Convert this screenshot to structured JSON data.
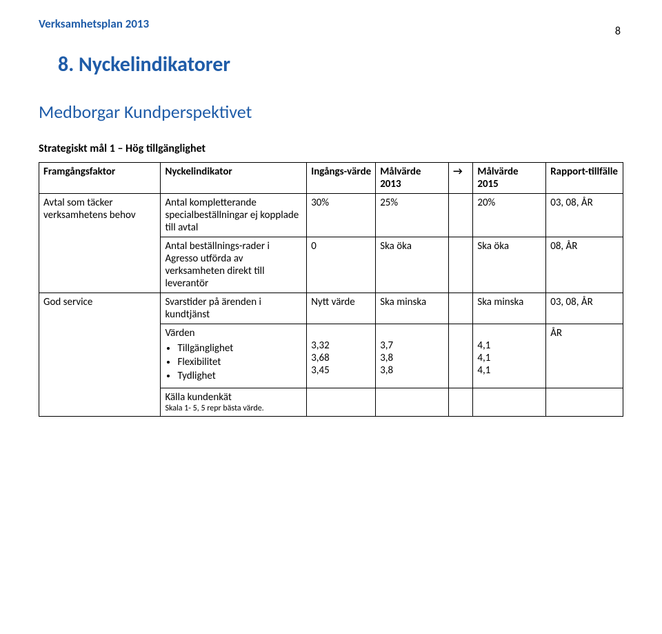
{
  "header": {
    "doc_title": "Verksamhetsplan 2013",
    "page_number": "8"
  },
  "section": {
    "title": "8.   Nyckelindikatorer",
    "subsection": "Medborgar Kundperspektivet",
    "strategic_goal": "Strategiskt mål 1 – Hög tillgänglighet"
  },
  "table": {
    "columns": {
      "framgangsfaktor": "Framgångsfaktor",
      "nyckelindikator": "Nyckelindikator",
      "ingangsvarde": "Ingångs-värde",
      "malvarde_2013": "Målvärde 2013",
      "arrow": "→",
      "malvarde_2015": "Målvärde 2015",
      "rapporttillfalle": "Rapport-tillfälle"
    },
    "row1": {
      "faktor": "Avtal som täcker verksamhetens behov",
      "indikator": "Antal kompletterande specialbeställningar ej kopplade till avtal",
      "ingang": "30%",
      "m2013": "25%",
      "m2015": "20%",
      "rapport": "03, 08, ÅR"
    },
    "row2": {
      "indikator": "Antal beställnings-rader i Agresso utförda av verksamheten direkt till leverantör",
      "ingang": "0",
      "m2013": "Ska öka",
      "m2015": "Ska öka",
      "rapport": "08, ÅR"
    },
    "row3": {
      "faktor": "God service",
      "indikator": "Svarstider på ärenden i kundtjänst",
      "ingang": "Nytt värde",
      "m2013": "Ska minska",
      "m2015": "Ska minska",
      "rapport": "03, 08, ÅR"
    },
    "row4": {
      "varden_label": "Värden",
      "bullets": {
        "a": "Tillgänglighet",
        "b": "Flexibilitet",
        "c": "Tydlighet"
      },
      "ingang": {
        "a": "3,32",
        "b": "3,68",
        "c": "3,45"
      },
      "m2013": {
        "a": "3,7",
        "b": "3,8",
        "c": "3,8"
      },
      "m2015": {
        "a": "4,1",
        "b": "4,1",
        "c": "4,1"
      },
      "rapport": "ÅR"
    },
    "row5": {
      "source": "Källa kundenkät",
      "scale_note": "Skala 1- 5, 5 repr bästa värde."
    }
  },
  "colors": {
    "heading_blue": "#1f5ca8",
    "text_black": "#000000",
    "border": "#000000",
    "background": "#ffffff"
  }
}
